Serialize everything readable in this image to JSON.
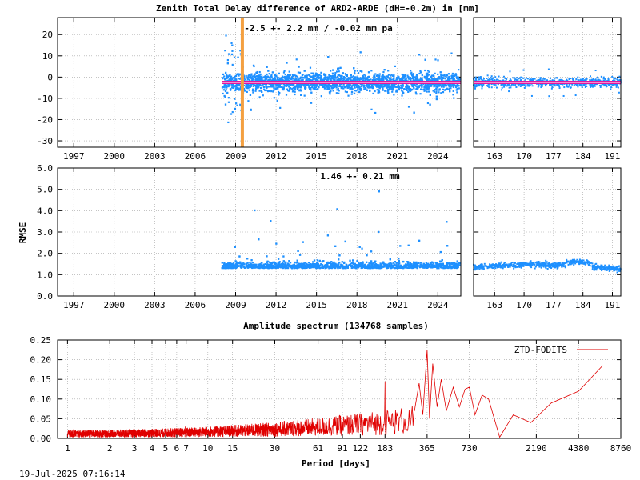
{
  "colors": {
    "scatter": "#1e90ff",
    "mean_line": "#e0189e",
    "mean_line_inner": "#ffffff",
    "event_line": "#f4a040",
    "spectrum": "#e00000",
    "grid": "#a0a0a0"
  },
  "footer": {
    "timestamp": "19-Jul-2025 07:16:14"
  },
  "chart_data": [
    {
      "id": "ztd_diff",
      "type": "scatter",
      "title": "Zenith Total Delay difference of ARD2-ARDE (dH=-0.2m) in [mm]",
      "annotation": "-2.5 +-   2.2 mm / -0.02 mm pa",
      "ylim": [
        -33,
        28
      ],
      "yticks": [
        20,
        10,
        0,
        -10,
        -20,
        -30
      ],
      "xlim": [
        1995.8,
        2025.7
      ],
      "xticks": [
        1997,
        2000,
        2003,
        2006,
        2009,
        2012,
        2015,
        2018,
        2021,
        2024
      ],
      "data_start": 2008.0,
      "data_end": 2025.6,
      "center": -2.5,
      "spread": 2.2,
      "mean": -2.5,
      "event_year": 2009.5,
      "zoom": {
        "xlim": [
          158,
          193
        ],
        "xticks": [
          163,
          170,
          177,
          184,
          191
        ]
      }
    },
    {
      "id": "rmse",
      "type": "scatter",
      "title": "",
      "ylabel": "RMSE",
      "annotation": "1.46 +-  0.21 mm",
      "ylim": [
        0.0,
        6.0
      ],
      "yticks": [
        6.0,
        5.0,
        4.0,
        3.0,
        2.0,
        1.0,
        0.0
      ],
      "xlim": [
        1995.8,
        2025.7
      ],
      "xticks": [
        1997,
        2000,
        2003,
        2006,
        2009,
        2012,
        2015,
        2018,
        2021,
        2024
      ],
      "data_start": 2008.0,
      "data_end": 2025.6,
      "center": 1.46,
      "spread": 0.21,
      "zoom": {
        "xlim": [
          158,
          193
        ],
        "xticks": [
          163,
          170,
          177,
          184,
          191
        ]
      }
    },
    {
      "id": "spectrum",
      "type": "line",
      "title": "Amplitude spectrum (134768 samples)",
      "xlabel": "Period [days]",
      "ylabel": "",
      "xscale": "log",
      "xlim": [
        0.85,
        8760
      ],
      "ylim": [
        0.0,
        0.25
      ],
      "yticks": [
        0.25,
        0.2,
        0.15,
        0.1,
        0.05,
        0.0
      ],
      "xticks": [
        1,
        2,
        3,
        4,
        5,
        6,
        7,
        10,
        15,
        30,
        61,
        91,
        122,
        183,
        365,
        730,
        2190,
        4380,
        8760
      ],
      "legend": {
        "label": "ZTD-FODITS",
        "position": "top-right"
      },
      "peaks": [
        {
          "period": 365,
          "amplitude": 0.225
        },
        {
          "period": 183,
          "amplitude": 0.145
        },
        {
          "period": 730,
          "amplitude": 0.13
        },
        {
          "period": 1200,
          "amplitude": 0.003
        },
        {
          "period": 2000,
          "amplitude": 0.04
        },
        {
          "period": 4380,
          "amplitude": 0.12
        },
        {
          "period": 6500,
          "amplitude": 0.185
        }
      ]
    }
  ]
}
